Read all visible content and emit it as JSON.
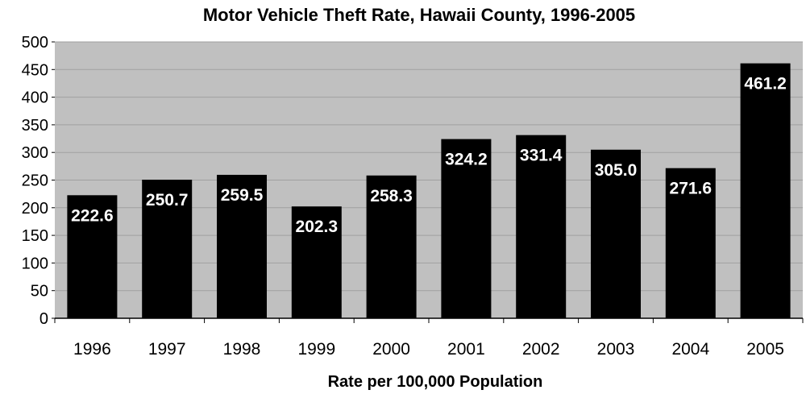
{
  "chart_data": {
    "type": "bar",
    "title": "Motor Vehicle Theft Rate, Hawaii County, 1996-2005",
    "xlabel": "Rate per 100,000 Population",
    "ylabel": "",
    "categories": [
      "1996",
      "1997",
      "1998",
      "1999",
      "2000",
      "2001",
      "2002",
      "2003",
      "2004",
      "2005"
    ],
    "values": [
      222.6,
      250.7,
      259.5,
      202.3,
      258.3,
      324.2,
      331.4,
      305.0,
      271.6,
      461.2
    ],
    "data_labels": [
      "222.6",
      "250.7",
      "259.5",
      "202.3",
      "258.3",
      "324.2",
      "331.4",
      "305.0",
      "271.6",
      "461.2"
    ],
    "ylim": [
      0,
      500
    ],
    "yticks": [
      "0",
      "50",
      "100",
      "150",
      "200",
      "250",
      "300",
      "350",
      "400",
      "450",
      "500"
    ],
    "grid": true,
    "legend": "none",
    "colors": {
      "plot_background": "#c0c0c0",
      "bar": "#000000",
      "data_label": "#ffffff",
      "gridline": "#a0a0a0"
    }
  }
}
